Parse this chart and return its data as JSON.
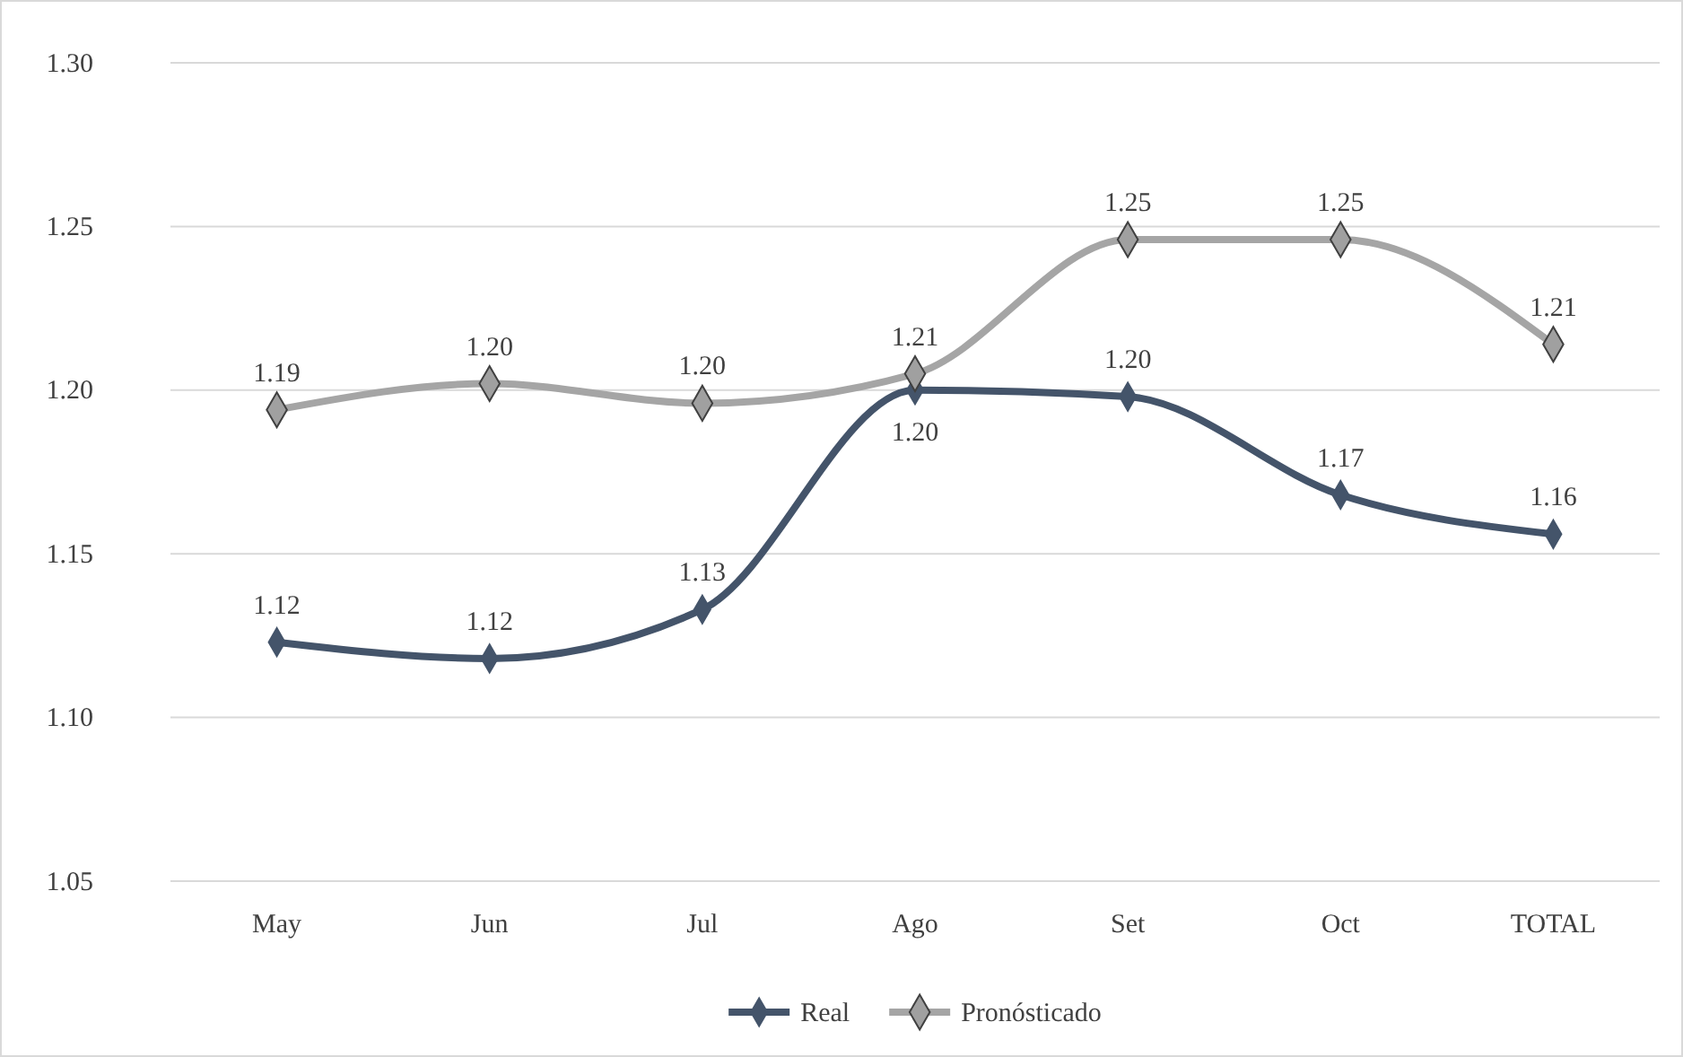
{
  "chart_data": {
    "type": "line",
    "categories": [
      "May",
      "Jun",
      "Jul",
      "Ago",
      "Set",
      "Oct",
      "TOTAL"
    ],
    "series": [
      {
        "name": "Real",
        "color": "#44546a",
        "values": [
          1.123,
          1.118,
          1.133,
          1.2,
          1.198,
          1.168,
          1.156
        ],
        "value_labels": [
          "1.12",
          "1.12",
          "1.13",
          "1.20",
          "1.20",
          "1.17",
          "1.16"
        ]
      },
      {
        "name": "Pronósticado",
        "color": "#a5a5a5",
        "values": [
          1.194,
          1.202,
          1.196,
          1.205,
          1.246,
          1.246,
          1.214
        ],
        "value_labels": [
          "1.19",
          "1.20",
          "1.20",
          "1.21",
          "1.25",
          "1.25",
          "1.21"
        ]
      }
    ],
    "ylim": [
      1.05,
      1.3
    ],
    "yticks": [
      {
        "value": 1.05,
        "label": "1.05"
      },
      {
        "value": 1.1,
        "label": "1.10"
      },
      {
        "value": 1.15,
        "label": "1.15"
      },
      {
        "value": 1.2,
        "label": "1.20"
      },
      {
        "value": 1.25,
        "label": "1.25"
      },
      {
        "value": 1.3,
        "label": "1.30"
      }
    ],
    "grid": "y",
    "legend": "bottom",
    "marker": "diamond",
    "line_style": "solid"
  }
}
